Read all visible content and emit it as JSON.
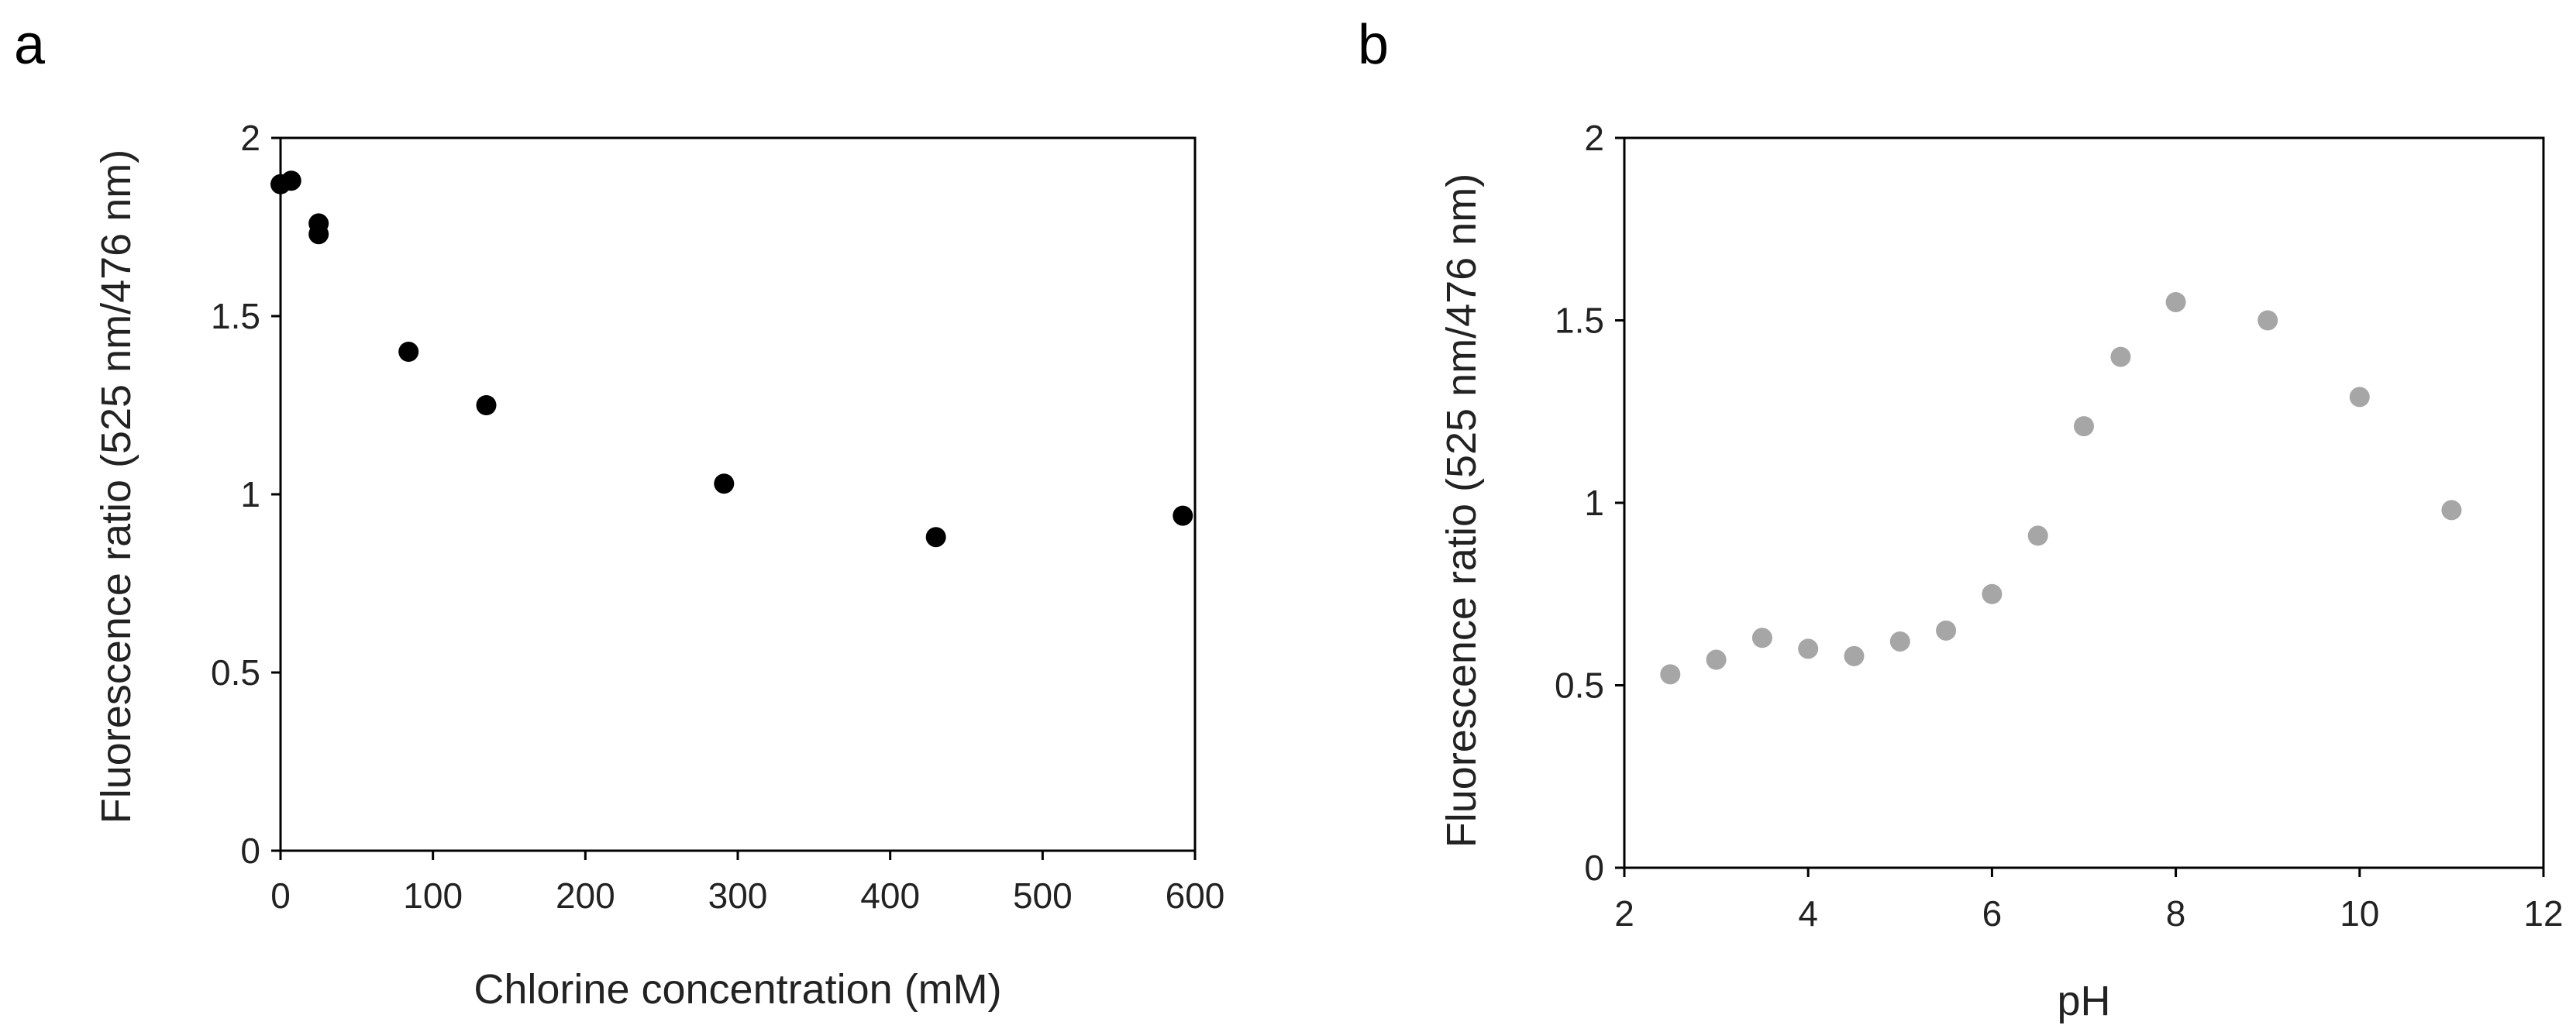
{
  "chart_data": [
    {
      "panel_label": "a",
      "type": "scatter",
      "title": "",
      "xlabel": "Chlorine concentration (mM)",
      "ylabel": "Fluorescence ratio (525 nm/476 nm)",
      "xlim": [
        0,
        600
      ],
      "ylim": [
        0,
        2
      ],
      "xticks": [
        "0",
        "100",
        "200",
        "300",
        "400",
        "500",
        "600"
      ],
      "yticks": [
        "0",
        "0.5",
        "1",
        "1.5",
        "2"
      ],
      "grid": false,
      "marker_color": "#000000",
      "series": [
        {
          "name": "Chlorine",
          "x": [
            0,
            7,
            25,
            25,
            84,
            135,
            291,
            430,
            592
          ],
          "y": [
            1.87,
            1.88,
            1.76,
            1.73,
            1.4,
            1.25,
            1.03,
            0.88,
            0.94
          ]
        }
      ]
    },
    {
      "panel_label": "b",
      "type": "scatter",
      "title": "",
      "xlabel": "pH",
      "ylabel": "Fluorescence ratio (525 nm/476 nm)",
      "xlim": [
        2,
        12
      ],
      "ylim": [
        0,
        2
      ],
      "xticks": [
        "2",
        "4",
        "6",
        "8",
        "10",
        "12"
      ],
      "yticks": [
        "0",
        "0.5",
        "1",
        "1.5",
        "2"
      ],
      "grid": false,
      "marker_color": "#a6a6a6",
      "series": [
        {
          "name": "pH",
          "x": [
            2.5,
            3,
            3.5,
            4,
            4.5,
            5,
            5.5,
            6,
            6.5,
            7,
            7.4,
            8,
            9,
            10,
            11
          ],
          "y": [
            0.53,
            0.57,
            0.63,
            0.6,
            0.58,
            0.62,
            0.65,
            0.75,
            0.91,
            1.21,
            1.4,
            1.55,
            1.5,
            1.29,
            0.98
          ]
        }
      ]
    }
  ]
}
